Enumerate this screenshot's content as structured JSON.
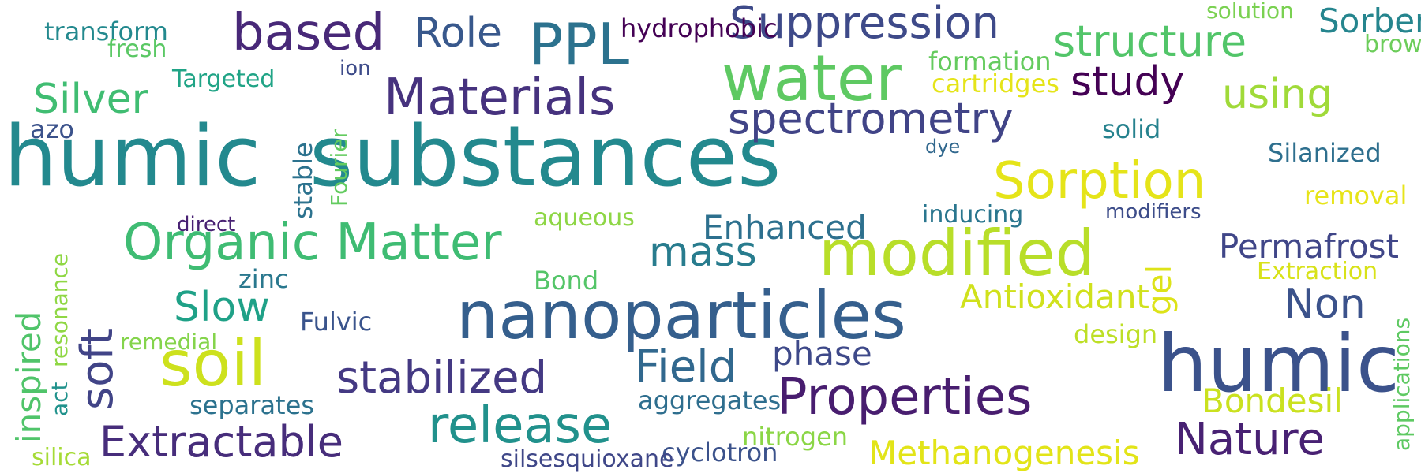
{
  "words": [
    {
      "text": "humic",
      "color": "#23898e"
    },
    {
      "text": "substances",
      "color": "#23898e"
    },
    {
      "text": "humic",
      "color": "#3b528b"
    },
    {
      "text": "nanoparticles",
      "color": "#355f8d"
    },
    {
      "text": "water",
      "color": "#5ec962"
    },
    {
      "text": "modified",
      "color": "#b8de29"
    },
    {
      "text": "soil",
      "color": "#cde11d"
    },
    {
      "text": "based",
      "color": "#482878"
    },
    {
      "text": "Materials",
      "color": "#46327e"
    },
    {
      "text": "Organic Matter",
      "color": "#3fbc73"
    },
    {
      "text": "Properties",
      "color": "#481d6f"
    },
    {
      "text": "release",
      "color": "#21918c"
    },
    {
      "text": "Sorption",
      "color": "#e5e419"
    },
    {
      "text": "Suppression",
      "color": "#3e4a89"
    },
    {
      "text": "PPL",
      "color": "#2c728e"
    },
    {
      "text": "structure",
      "color": "#52c569"
    },
    {
      "text": "spectrometry",
      "color": "#414487"
    },
    {
      "text": "stabilized",
      "color": "#443983"
    },
    {
      "text": "Extractable",
      "color": "#472d7b"
    },
    {
      "text": "Nature",
      "color": "#482173"
    },
    {
      "text": "Field",
      "color": "#31688e"
    },
    {
      "text": "mass",
      "color": "#287c8e"
    },
    {
      "text": "study",
      "color": "#440154"
    },
    {
      "text": "using",
      "color": "#a0da39"
    },
    {
      "text": "Silver",
      "color": "#40bd72"
    },
    {
      "text": "Role",
      "color": "#38588c"
    },
    {
      "text": "Slow",
      "color": "#1fa187"
    },
    {
      "text": "Non",
      "color": "#3b528b"
    },
    {
      "text": "phase",
      "color": "#3e4989"
    },
    {
      "text": "Methanogenesis",
      "color": "#e2e418"
    },
    {
      "text": "Antioxidant",
      "color": "#d0e11c"
    },
    {
      "text": "Permafrost",
      "color": "#404688"
    },
    {
      "text": "Bondesil",
      "color": "#cae11f"
    },
    {
      "text": "Enhanced",
      "color": "#2d708e"
    },
    {
      "text": "Sorbents",
      "color": "#25858e"
    },
    {
      "text": "Fulvic",
      "color": "#3a548c"
    },
    {
      "text": "Bond",
      "color": "#54c568"
    },
    {
      "text": "zinc",
      "color": "#2a788e"
    },
    {
      "text": "separates",
      "color": "#2c728e"
    },
    {
      "text": "aggregates",
      "color": "#2e6e8e"
    },
    {
      "text": "hydrophobic",
      "color": "#440154"
    },
    {
      "text": "inducing",
      "color": "#2a768e"
    },
    {
      "text": "solid",
      "color": "#26828e"
    },
    {
      "text": "Silanized",
      "color": "#2e6f8e"
    },
    {
      "text": "removal",
      "color": "#e7e419"
    },
    {
      "text": "Extraction",
      "color": "#d8e219"
    },
    {
      "text": "design",
      "color": "#bddf26"
    },
    {
      "text": "cartridges",
      "color": "#e5e419"
    },
    {
      "text": "formation",
      "color": "#65cb5e"
    },
    {
      "text": "solution",
      "color": "#7ad151"
    },
    {
      "text": "brown",
      "color": "#6ccd5a"
    },
    {
      "text": "transform",
      "color": "#23898e"
    },
    {
      "text": "fresh",
      "color": "#5ac864"
    },
    {
      "text": "Targeted",
      "color": "#20a486"
    },
    {
      "text": "ion",
      "color": "#3e4c8a"
    },
    {
      "text": "azo",
      "color": "#3b528b"
    },
    {
      "text": "dye",
      "color": "#31688e"
    },
    {
      "text": "modifiers",
      "color": "#3d4d8a"
    },
    {
      "text": "aqueous",
      "color": "#8ed645"
    },
    {
      "text": "direct",
      "color": "#482173"
    },
    {
      "text": "remedial",
      "color": "#84d44b"
    },
    {
      "text": "cyclotron",
      "color": "#3b528b"
    },
    {
      "text": "nitrogen",
      "color": "#8bd646"
    },
    {
      "text": "silsesquioxane",
      "color": "#3f4788"
    },
    {
      "text": "silica",
      "color": "#a5db36"
    },
    {
      "text": "soft",
      "color": "#414487"
    },
    {
      "text": "inspired",
      "color": "#50c46a"
    },
    {
      "text": "gel",
      "color": "#dde318"
    },
    {
      "text": "stable",
      "color": "#2c728e"
    },
    {
      "text": "Fourier",
      "color": "#63cb5f"
    },
    {
      "text": "resonance",
      "color": "#8fd744"
    },
    {
      "text": "act",
      "color": "#20928c"
    },
    {
      "text": "applications",
      "color": "#5ec962"
    }
  ]
}
